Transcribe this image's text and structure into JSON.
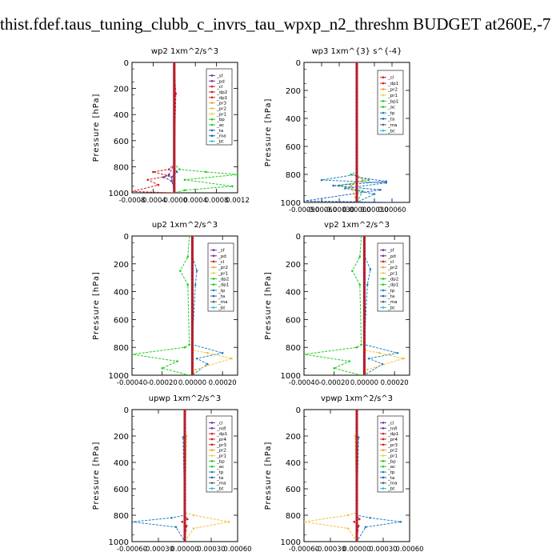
{
  "page_title": "thist.fdef.taus_tuning_clubb_c_invrs_tau_wpxp_n2_threshm  BUDGET at260E,-7",
  "chart_data": [
    {
      "type": "line",
      "title": "wp2  1xm^2/s^3",
      "ylabel": "Pressure [hPa]",
      "ylim": [
        1000,
        0
      ],
      "xlim": [
        -0.0008,
        0.0012
      ],
      "xticks": [
        "-0.0008",
        "-0.0004",
        "-0.0000",
        "0.0004",
        "0.0008",
        "0.0012"
      ],
      "xtick_values": [
        -0.0008,
        -0.0004,
        0,
        0.0004,
        0.0008,
        0.0012
      ],
      "yticks": [
        "0",
        "200",
        "400",
        "600",
        "800",
        "1000"
      ],
      "legend": [
        "_sf",
        "_pd",
        "_cl",
        "_dp2",
        "_dp1",
        "_pr3",
        "_pr2",
        "_pr1",
        "_bp",
        "_ac",
        "_ta",
        "_ma",
        "_bt"
      ],
      "legend_colors": [
        "#7030a0",
        "#7030a0",
        "#cc2020",
        "#cc2020",
        "#cc2020",
        "#f0a030",
        "#f0c040",
        "#f0d050",
        "#22cc22",
        "#22cc22",
        "#2060c0",
        "#2060c0",
        "#20c0e0"
      ],
      "series": [
        {
          "color": "#22cc22",
          "x": [
            0,
            0,
            2e-05,
            0,
            0.0001,
            0.0006,
            0.0012,
            0.0002,
            0.0011,
            0.0002,
            0
          ],
          "y": [
            0,
            200,
            240,
            780,
            820,
            840,
            860,
            900,
            950,
            980,
            1000
          ]
        },
        {
          "color": "#cc2020",
          "x": [
            0,
            3e-05,
            0,
            -0.0001,
            -0.0004,
            -0.0001,
            -0.0005,
            -0.0003,
            -0.0008,
            0
          ],
          "y": [
            0,
            240,
            780,
            820,
            840,
            870,
            900,
            940,
            990,
            1000
          ]
        },
        {
          "color": "#7030a0",
          "x": [
            0,
            0,
            -0.0001,
            -0.0002,
            -5e-05,
            0,
            0
          ],
          "y": [
            0,
            780,
            860,
            880,
            910,
            960,
            1000
          ]
        },
        {
          "color": "#2060c0",
          "x": [
            0,
            0,
            5e-05,
            -5e-05,
            0
          ],
          "y": [
            0,
            800,
            840,
            880,
            1000
          ]
        }
      ]
    },
    {
      "type": "line",
      "title": "wp3  1xm^{3} s^{-4}",
      "ylabel": "Pressure [hPa]",
      "ylim": [
        1000,
        0
      ],
      "xlim": [
        -0.0009,
        0.0009
      ],
      "xticks": [
        "-0.00090",
        "-0.00060",
        "-0.00030",
        "0.00000",
        "0.00030",
        "0.00060"
      ],
      "xtick_values": [
        -0.0009,
        -0.0006,
        -0.0003,
        0,
        0.0003,
        0.0006
      ],
      "yticks": [
        "0",
        "200",
        "400",
        "600",
        "800",
        "1000"
      ],
      "legend": [
        "_cl",
        "_dp1",
        "_pr2",
        "_pr1",
        "_bp1",
        "_ac",
        "_tp",
        "_ta",
        "_ma",
        "_bt"
      ],
      "legend_colors": [
        "#cc2020",
        "#cc2020",
        "#f0a030",
        "#f0d050",
        "#22cc22",
        "#22cc22",
        "#2080c0",
        "#2060c0",
        "#606060",
        "#20c0e0"
      ],
      "series": [
        {
          "color": "#22cc22",
          "x": [
            0,
            0,
            -0.0001,
            0.0002,
            -0.0003,
            0.0001,
            0
          ],
          "y": [
            0,
            780,
            800,
            840,
            880,
            920,
            1000
          ]
        },
        {
          "color": "#2080c0",
          "x": [
            0,
            0,
            -0.0006,
            0.0005,
            -0.0002,
            0.0003,
            0
          ],
          "y": [
            0,
            800,
            840,
            860,
            900,
            940,
            1000
          ]
        },
        {
          "color": "#2060c0",
          "x": [
            0,
            0,
            0.0005,
            -0.0004,
            0.0004,
            -0.0009,
            0.0006
          ],
          "y": [
            0,
            820,
            850,
            880,
            910,
            990,
            1000
          ]
        },
        {
          "color": "#f0a030",
          "x": [
            0,
            0,
            0.0001,
            -0.0001,
            0
          ],
          "y": [
            0,
            800,
            840,
            880,
            1000
          ]
        },
        {
          "color": "#cc2020",
          "x": [
            0,
            0
          ],
          "y": [
            0,
            1000
          ]
        }
      ]
    },
    {
      "type": "line",
      "title": "up2  1xm^2/s^3",
      "ylabel": "Pressure [hPa]",
      "ylim": [
        1000,
        0
      ],
      "xlim": [
        -0.0004,
        0.0003
      ],
      "xticks": [
        "-0.00040",
        "-0.00020",
        "0.00000",
        "0.00020"
      ],
      "xtick_values": [
        -0.0004,
        -0.0002,
        0,
        0.0002
      ],
      "yticks": [
        "0",
        "200",
        "400",
        "600",
        "800",
        "1000"
      ],
      "legend": [
        "_sf",
        "_pd",
        "_cl",
        "_pr2",
        "_pr1",
        "_dp2",
        "_dp1",
        "_tp",
        "_ta",
        "_ma",
        "_bt"
      ],
      "legend_colors": [
        "#7030a0",
        "#7030a0",
        "#cc2020",
        "#f0a030",
        "#f0d050",
        "#22cc22",
        "#22cc22",
        "#2080c0",
        "#2060c0",
        "#606060",
        "#20c0e0"
      ],
      "series": [
        {
          "color": "#22cc22",
          "x": [
            -2e-05,
            -3e-05,
            -8e-05,
            -3e-05,
            -2e-05,
            -5e-05,
            -0.0004,
            -0.0001,
            -0.0002,
            -2e-05
          ],
          "y": [
            0,
            150,
            250,
            350,
            780,
            800,
            850,
            900,
            950,
            1000
          ]
        },
        {
          "color": "#2080c0",
          "x": [
            0,
            0,
            3e-05,
            2e-05,
            0,
            0.0002,
            3e-05,
            0.0001,
            0
          ],
          "y": [
            0,
            140,
            250,
            350,
            780,
            840,
            880,
            920,
            1000
          ]
        },
        {
          "color": "#f0c040",
          "x": [
            0,
            0,
            0.0001,
            0.00026,
            2e-05,
            0
          ],
          "y": [
            0,
            820,
            840,
            880,
            960,
            1000
          ]
        },
        {
          "color": "#cc2020",
          "x": [
            0,
            0
          ],
          "y": [
            0,
            1000
          ]
        }
      ]
    },
    {
      "type": "line",
      "title": "vp2  1xm^2/s^3",
      "ylabel": "Pressure [hPa]",
      "ylim": [
        1000,
        0
      ],
      "xlim": [
        -0.0004,
        0.0003
      ],
      "xticks": [
        "-0.00040",
        "-0.00020",
        "0.00000",
        "0.00020"
      ],
      "xtick_values": [
        -0.0004,
        -0.0002,
        0,
        0.0002
      ],
      "yticks": [
        "0",
        "200",
        "400",
        "600",
        "800",
        "1000"
      ],
      "legend": [
        "_sf",
        "_pd",
        "_cl",
        "_pr2",
        "_pr1",
        "_dp2",
        "_dp1",
        "_tp",
        "_ta",
        "_ma",
        "_bt"
      ],
      "legend_colors": [
        "#7030a0",
        "#7030a0",
        "#cc2020",
        "#f0a030",
        "#f0d050",
        "#22cc22",
        "#22cc22",
        "#2080c0",
        "#2060c0",
        "#606060",
        "#20c0e0"
      ],
      "series": [
        {
          "color": "#22cc22",
          "x": [
            -2e-05,
            -3e-05,
            -8e-05,
            -3e-05,
            -2e-05,
            -5e-05,
            -0.0004,
            -0.0001,
            -0.0002,
            -2e-05
          ],
          "y": [
            0,
            150,
            250,
            350,
            780,
            800,
            850,
            900,
            950,
            1000
          ]
        },
        {
          "color": "#2080c0",
          "x": [
            0,
            0,
            4e-05,
            2e-05,
            0,
            0.00022,
            3e-05,
            0.00012,
            0
          ],
          "y": [
            0,
            140,
            240,
            350,
            780,
            840,
            880,
            920,
            1000
          ]
        },
        {
          "color": "#f0c040",
          "x": [
            0,
            0,
            0.0001,
            0.00026,
            2e-05,
            0
          ],
          "y": [
            0,
            820,
            840,
            880,
            960,
            1000
          ]
        },
        {
          "color": "#cc2020",
          "x": [
            0,
            0
          ],
          "y": [
            0,
            1000
          ]
        }
      ]
    },
    {
      "type": "line",
      "title": "upwp  1xm^2/s^3",
      "ylabel": "Pressure [hPa]",
      "ylim": [
        1000,
        0
      ],
      "xlim": [
        -0.0006,
        0.0006
      ],
      "xticks": [
        "-0.00060",
        "-0.00030",
        "0.00000",
        "0.00030",
        "0.00060"
      ],
      "xtick_values": [
        -0.0006,
        -0.0003,
        0,
        0.0003,
        0.0006
      ],
      "yticks": [
        "0",
        "200",
        "400",
        "600",
        "800",
        "1000"
      ],
      "legend": [
        "_cl",
        "_mfl",
        "_dp1",
        "_pr4",
        "_pr3",
        "_pr2",
        "_pr1",
        "_bp",
        "_ac",
        "_tp",
        "_ta",
        "_ma",
        "_bt"
      ],
      "legend_colors": [
        "#7030a0",
        "#7030a0",
        "#cc2020",
        "#cc2020",
        "#cc2020",
        "#f0a030",
        "#f0d050",
        "#22cc22",
        "#22cc22",
        "#2080c0",
        "#2060c0",
        "#606060",
        "#20c0e0"
      ],
      "series": [
        {
          "color": "#f0c040",
          "x": [
            0,
            0,
            2e-05,
            0,
            0.0001,
            0.0005,
            0.0001,
            0
          ],
          "y": [
            0,
            190,
            200,
            780,
            800,
            850,
            900,
            1000
          ]
        },
        {
          "color": "#2080c0",
          "x": [
            0,
            0,
            -2e-05,
            0,
            -0.00015,
            -0.0006,
            -0.0001,
            0
          ],
          "y": [
            0,
            190,
            210,
            800,
            820,
            850,
            890,
            1000
          ]
        },
        {
          "color": "#cc2020",
          "x": [
            0,
            0,
            3e-05,
            -3e-05,
            2e-05,
            0
          ],
          "y": [
            0,
            800,
            830,
            850,
            880,
            1000
          ]
        },
        {
          "color": "#7030a0",
          "x": [
            0,
            0
          ],
          "y": [
            0,
            1000
          ]
        }
      ]
    },
    {
      "type": "line",
      "title": "vpwp  1xm^2/s^3",
      "ylabel": "Pressure [hPa]",
      "ylim": [
        1000,
        0
      ],
      "xlim": [
        -0.0006,
        0.0006
      ],
      "xticks": [
        "-0.00060",
        "-0.00030",
        "0.00000",
        "0.00030",
        "0.00060"
      ],
      "xtick_values": [
        -0.0006,
        -0.0003,
        0,
        0.0003,
        0.0006
      ],
      "yticks": [
        "0",
        "200",
        "400",
        "600",
        "800",
        "1000"
      ],
      "legend": [
        "_cl",
        "_mfl",
        "_dp1",
        "_pr4",
        "_pr3",
        "_pr2",
        "_pr1",
        "_bp",
        "_ac",
        "_tp",
        "_ta",
        "_ma",
        "_bt"
      ],
      "legend_colors": [
        "#7030a0",
        "#7030a0",
        "#cc2020",
        "#cc2020",
        "#cc2020",
        "#f0a030",
        "#f0d050",
        "#22cc22",
        "#22cc22",
        "#2080c0",
        "#2060c0",
        "#606060",
        "#20c0e0"
      ],
      "series": [
        {
          "color": "#f0c040",
          "x": [
            0,
            0,
            -2e-05,
            0,
            -0.0001,
            -0.0006,
            -0.0001,
            0
          ],
          "y": [
            0,
            190,
            200,
            780,
            800,
            850,
            900,
            1000
          ]
        },
        {
          "color": "#2080c0",
          "x": [
            0,
            0,
            2e-05,
            0,
            0.00015,
            0.0005,
            0.0001,
            0
          ],
          "y": [
            0,
            190,
            210,
            800,
            820,
            850,
            890,
            1000
          ]
        },
        {
          "color": "#cc2020",
          "x": [
            0,
            0,
            3e-05,
            -3e-05,
            2e-05,
            0
          ],
          "y": [
            0,
            800,
            830,
            850,
            880,
            1000
          ]
        },
        {
          "color": "#7030a0",
          "x": [
            0,
            0
          ],
          "y": [
            0,
            1000
          ]
        }
      ]
    }
  ]
}
